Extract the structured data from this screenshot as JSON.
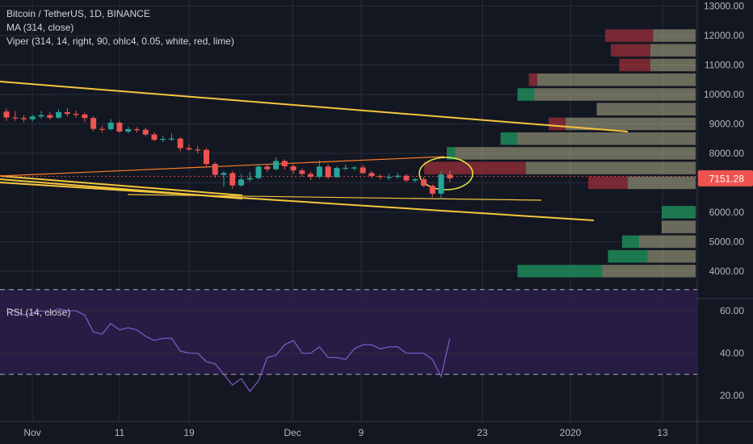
{
  "header": {
    "symbol_line": "Bitcoin / TetherUS, 1D, BINANCE",
    "ma_line": "MA (314, close)",
    "viper_line": "Viper (314, 14, right, 90, ohlc4, 0.05, white, red, lime)"
  },
  "colors": {
    "background": "#131722",
    "grid": "#2a2e39",
    "up": "#26a69a",
    "down": "#ef5350",
    "trendline": "#f5c63c",
    "ma": "#ff7f27",
    "rsi": "#7e57c2",
    "rsi_band": "#2b1f4a",
    "price_tag": "#ef5350"
  },
  "price_axis": {
    "ticks": [
      "13000.00",
      "12000.00",
      "11000.00",
      "10000.00",
      "9000.00",
      "8000.00",
      "7000.00",
      "6000.00",
      "5000.00",
      "4000.00"
    ],
    "last_price": "7151.28"
  },
  "time_axis": {
    "labels": [
      "Nov",
      "11",
      "19",
      "Dec",
      "9",
      "23",
      "2020",
      "13"
    ]
  },
  "rsi_panel": {
    "title": "RSI (14, close)",
    "ticks": [
      "60.00",
      "40.00",
      "20.00"
    ]
  },
  "chart_data": [
    {
      "type": "candlestick",
      "title": "Bitcoin / TetherUS, 1D, BINANCE",
      "ylim": [
        3500,
        13000
      ],
      "x": [
        "Oct 29",
        "Oct 30",
        "Oct 31",
        "Nov 1",
        "Nov 2",
        "Nov 3",
        "Nov 4",
        "Nov 5",
        "Nov 6",
        "Nov 7",
        "Nov 8",
        "Nov 9",
        "Nov 10",
        "Nov 11",
        "Nov 12",
        "Nov 13",
        "Nov 14",
        "Nov 15",
        "Nov 16",
        "Nov 17",
        "Nov 18",
        "Nov 19",
        "Nov 20",
        "Nov 21",
        "Nov 22",
        "Nov 23",
        "Nov 24",
        "Nov 25",
        "Nov 26",
        "Nov 27",
        "Nov 28",
        "Nov 29",
        "Nov 30",
        "Dec 1",
        "Dec 2",
        "Dec 3",
        "Dec 4",
        "Dec 5",
        "Dec 6",
        "Dec 7",
        "Dec 8",
        "Dec 9",
        "Dec 10",
        "Dec 11",
        "Dec 12",
        "Dec 13",
        "Dec 14",
        "Dec 15",
        "Dec 16",
        "Dec 17",
        "Dec 18",
        "Dec 19"
      ],
      "open": [
        9420,
        9220,
        9200,
        9160,
        9250,
        9300,
        9210,
        9400,
        9340,
        9320,
        9200,
        8830,
        8820,
        9040,
        8740,
        8820,
        8800,
        8640,
        8460,
        8490,
        8500,
        8180,
        8130,
        8120,
        7640,
        7270,
        7330,
        6910,
        7110,
        7160,
        7550,
        7460,
        7740,
        7560,
        7420,
        7300,
        7200,
        7550,
        7190,
        7500,
        7510,
        7520,
        7330,
        7230,
        7200,
        7200,
        7240,
        7080,
        7120,
        6900,
        6630,
        7280
      ],
      "close": [
        9220,
        9200,
        9160,
        9250,
        9300,
        9210,
        9400,
        9340,
        9320,
        9200,
        8830,
        8820,
        9040,
        8740,
        8820,
        8800,
        8640,
        8460,
        8490,
        8500,
        8180,
        8130,
        8120,
        7640,
        7270,
        7330,
        6910,
        7110,
        7160,
        7550,
        7460,
        7740,
        7560,
        7420,
        7300,
        7200,
        7550,
        7190,
        7500,
        7510,
        7520,
        7330,
        7230,
        7200,
        7200,
        7240,
        7080,
        7120,
        6900,
        6630,
        7280,
        7151
      ],
      "high": [
        9520,
        9440,
        9300,
        9310,
        9440,
        9400,
        9500,
        9530,
        9450,
        9390,
        9270,
        8930,
        9160,
        9100,
        8900,
        8890,
        8870,
        8720,
        8600,
        8680,
        8550,
        8300,
        8250,
        8180,
        7700,
        7400,
        7400,
        7300,
        7380,
        7650,
        7620,
        7870,
        7800,
        7630,
        7490,
        7380,
        7760,
        7630,
        7560,
        7610,
        7560,
        7600,
        7400,
        7290,
        7300,
        7330,
        7290,
        7180,
        7200,
        6940,
        7400,
        7420
      ],
      "low": [
        9100,
        9100,
        9060,
        9080,
        9180,
        9140,
        9170,
        9250,
        9210,
        9060,
        8750,
        8700,
        8780,
        8700,
        8680,
        8700,
        8570,
        8400,
        8380,
        8420,
        8070,
        8080,
        8000,
        7520,
        7180,
        6860,
        6800,
        6860,
        7040,
        7110,
        7360,
        7420,
        7450,
        7300,
        7200,
        7100,
        7150,
        7130,
        7170,
        7420,
        7420,
        7300,
        7150,
        7110,
        7100,
        7150,
        7020,
        7020,
        6850,
        6510,
        6440,
        7030
      ]
    },
    {
      "type": "line",
      "title": "RSI (14, close)",
      "ylim": [
        18,
        72
      ],
      "x": [
        "Oct 29",
        "Oct 30",
        "Oct 31",
        "Nov 1",
        "Nov 2",
        "Nov 3",
        "Nov 4",
        "Nov 5",
        "Nov 6",
        "Nov 7",
        "Nov 8",
        "Nov 9",
        "Nov 10",
        "Nov 11",
        "Nov 12",
        "Nov 13",
        "Nov 14",
        "Nov 15",
        "Nov 16",
        "Nov 17",
        "Nov 18",
        "Nov 19",
        "Nov 20",
        "Nov 21",
        "Nov 22",
        "Nov 23",
        "Nov 24",
        "Nov 25",
        "Nov 26",
        "Nov 27",
        "Nov 28",
        "Nov 29",
        "Nov 30",
        "Dec 1",
        "Dec 2",
        "Dec 3",
        "Dec 4",
        "Dec 5",
        "Dec 6",
        "Dec 7",
        "Dec 8",
        "Dec 9",
        "Dec 10",
        "Dec 11",
        "Dec 12",
        "Dec 13",
        "Dec 14",
        "Dec 15",
        "Dec 16",
        "Dec 17",
        "Dec 18",
        "Dec 19"
      ],
      "values": [
        61,
        60,
        58,
        59,
        60,
        59,
        61,
        60,
        60,
        58,
        50,
        49,
        54,
        51,
        52,
        51,
        48,
        46,
        47,
        47,
        41,
        40,
        40,
        36,
        35,
        30,
        25,
        28,
        22,
        27,
        38,
        39,
        44,
        46,
        40,
        40,
        43,
        38,
        38,
        37,
        42,
        44,
        44,
        42,
        43,
        43,
        40,
        40,
        40,
        37,
        29,
        47
      ]
    },
    {
      "type": "bar",
      "title": "Viper (314, 14, right, 90, ohlc4, 0.05, white, red, lime)",
      "ylim": [
        3500,
        13000
      ],
      "categories": [
        "12000",
        "11500",
        "11000",
        "10500",
        "10000",
        "9500",
        "9000",
        "8500",
        "8000",
        "7500",
        "7000",
        "6000",
        "5500",
        "5000",
        "4500",
        "4000"
      ],
      "series": [
        {
          "name": "down",
          "values": [
            17,
            14,
            11,
            3,
            0,
            0,
            6,
            0,
            0,
            36,
            14,
            0,
            0,
            0,
            0,
            0
          ]
        },
        {
          "name": "up",
          "values": [
            0,
            0,
            0,
            0,
            6,
            0,
            0,
            6,
            3,
            0,
            0,
            12,
            0,
            6,
            14,
            30
          ]
        },
        {
          "name": "neutral",
          "values": [
            15,
            16,
            16,
            56,
            57,
            35,
            46,
            63,
            85,
            60,
            24,
            0,
            12,
            20,
            17,
            33
          ]
        }
      ]
    }
  ]
}
